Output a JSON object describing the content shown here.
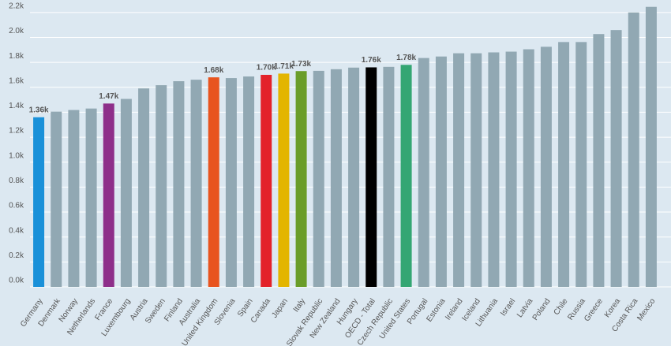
{
  "chart_data": {
    "type": "bar",
    "categories": [
      "Germany",
      "Denmark",
      "Norway",
      "Netherlands",
      "France",
      "Luxembourg",
      "Austria",
      "Sweden",
      "Finland",
      "Australia",
      "United Kingdom",
      "Slovenia",
      "Spain",
      "Canada",
      "Japan",
      "Italy",
      "Slovak Republic",
      "New Zealand",
      "Hungary",
      "OECD - Total",
      "Czech Republic",
      "United States",
      "Portugal",
      "Estonia",
      "Ireland",
      "Iceland",
      "Lithuania",
      "Israel",
      "Latvia",
      "Poland",
      "Chile",
      "Russia",
      "Greece",
      "Korea",
      "Costa Rica",
      "Mexico"
    ],
    "values": [
      1360,
      1405,
      1418,
      1430,
      1470,
      1507,
      1591,
      1617,
      1649,
      1661,
      1680,
      1674,
      1687,
      1700,
      1710,
      1730,
      1732,
      1745,
      1758,
      1760,
      1764,
      1780,
      1835,
      1847,
      1873,
      1873,
      1880,
      1886,
      1905,
      1925,
      1963,
      1963,
      2027,
      2059,
      2200,
      2245
    ],
    "value_labels": [
      "1.36k",
      null,
      null,
      null,
      "1.47k",
      null,
      null,
      null,
      null,
      null,
      "1.68k",
      null,
      null,
      "1.70k",
      "1.71k",
      "1.73k",
      null,
      null,
      null,
      "1.76k",
      null,
      "1.78k",
      null,
      null,
      null,
      null,
      null,
      null,
      null,
      null,
      null,
      null,
      null,
      null,
      null,
      null
    ],
    "colors": [
      "#1a91d9",
      "#91a8b3",
      "#91a8b3",
      "#91a8b3",
      "#8e2f8a",
      "#91a8b3",
      "#91a8b3",
      "#91a8b3",
      "#91a8b3",
      "#91a8b3",
      "#e8541f",
      "#91a8b3",
      "#91a8b3",
      "#e3222a",
      "#e3b500",
      "#6a9d29",
      "#91a8b3",
      "#91a8b3",
      "#91a8b3",
      "#000000",
      "#91a8b3",
      "#34a673",
      "#91a8b3",
      "#91a8b3",
      "#91a8b3",
      "#91a8b3",
      "#91a8b3",
      "#91a8b3",
      "#91a8b3",
      "#91a8b3",
      "#91a8b3",
      "#91a8b3",
      "#91a8b3",
      "#91a8b3",
      "#91a8b3",
      "#91a8b3"
    ],
    "ylim": [
      0,
      2300
    ],
    "yticks": [
      {
        "value": 0,
        "label": "0.0k"
      },
      {
        "value": 200,
        "label": "0.2k"
      },
      {
        "value": 400,
        "label": "0.4k"
      },
      {
        "value": 600,
        "label": "0.6k"
      },
      {
        "value": 800,
        "label": "0.8k"
      },
      {
        "value": 1000,
        "label": "1.0k"
      },
      {
        "value": 1200,
        "label": "1.2k"
      },
      {
        "value": 1400,
        "label": "1.4k"
      },
      {
        "value": 1600,
        "label": "1.6k"
      },
      {
        "value": 1800,
        "label": "1.8k"
      },
      {
        "value": 2000,
        "label": "2.0k"
      },
      {
        "value": 2200,
        "label": "2.2k"
      }
    ],
    "grid": true
  }
}
